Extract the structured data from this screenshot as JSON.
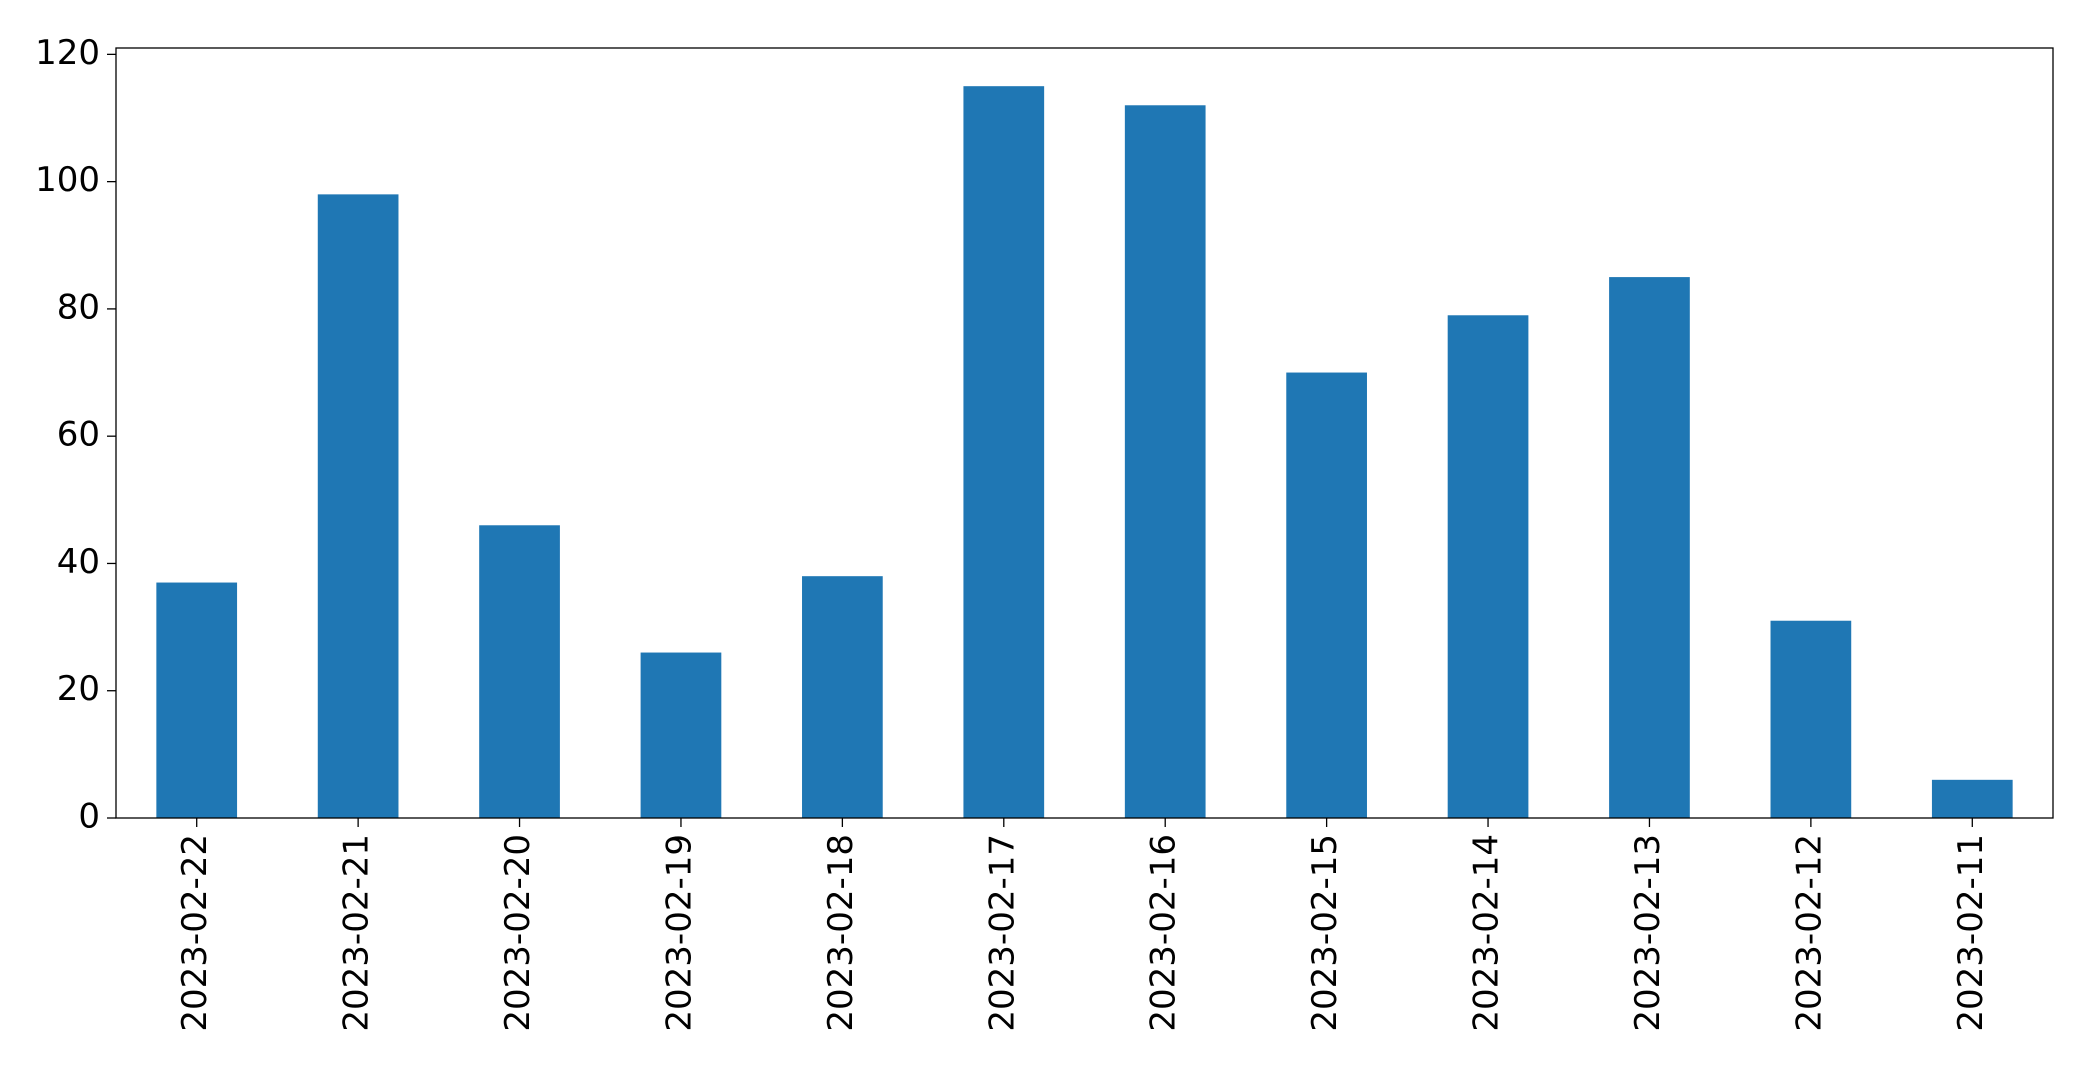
{
  "chart_data": {
    "type": "bar",
    "categories": [
      "2023-02-22",
      "2023-02-21",
      "2023-02-20",
      "2023-02-19",
      "2023-02-18",
      "2023-02-17",
      "2023-02-16",
      "2023-02-15",
      "2023-02-14",
      "2023-02-13",
      "2023-02-12",
      "2023-02-11"
    ],
    "values": [
      37,
      98,
      46,
      26,
      38,
      115,
      112,
      70,
      79,
      85,
      31,
      6
    ],
    "color": "#1f77b4",
    "ylim": [
      0,
      121
    ],
    "yticks": [
      0,
      20,
      40,
      60,
      80,
      100,
      120
    ],
    "grid": false
  }
}
